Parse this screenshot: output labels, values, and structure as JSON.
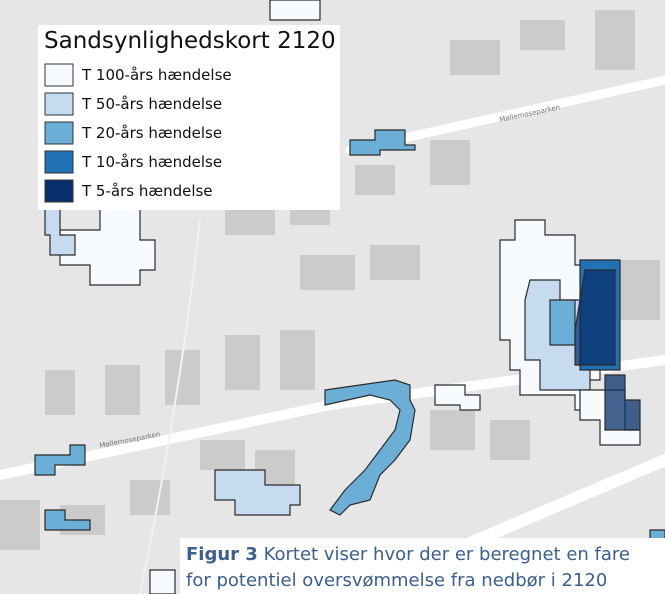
{
  "legend": {
    "title": "Sandsynlighedskort 2120",
    "items": [
      {
        "label": "T 100-års hændelse",
        "color": "#f7fbff"
      },
      {
        "label": "T 50-års hændelse",
        "color": "#c6dbef"
      },
      {
        "label": "T 20-års hændelse",
        "color": "#6baed6"
      },
      {
        "label": "T 10-års hændelse",
        "color": "#2171b5"
      },
      {
        "label": "T 5-års hændelse",
        "color": "#08306b"
      }
    ]
  },
  "roads": [
    "Møllemoseparken",
    "Møllemoseparken"
  ],
  "caption": {
    "label": "Figur 3",
    "line1": "Kortet viser hvor der er beregnet en fare",
    "line2": "for potentiel oversvømmelse fra nedbør i 2120"
  }
}
